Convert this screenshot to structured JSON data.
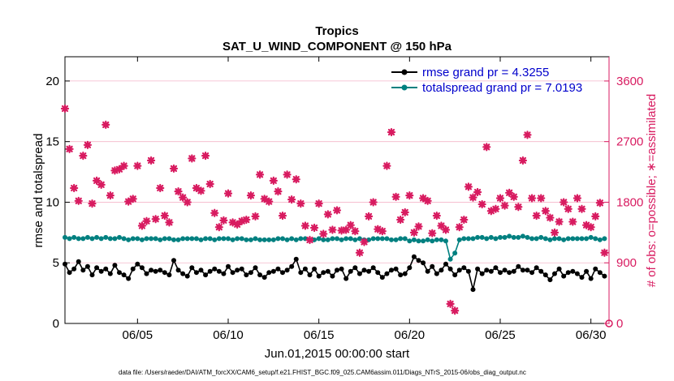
{
  "chart_data": {
    "type": "line",
    "title": "Tropics",
    "subtitle": "SAT_U_WIND_COMPONENT @ 150 hPa",
    "xlabel": "Jun.01,2015 00:00:00 start",
    "ylabel": "rmse and totalspread",
    "ylabel_right": "# of obs: o=possible; ∗=assimilated",
    "xlim": [
      1,
      31
    ],
    "ylim": [
      0,
      22
    ],
    "ylim_right": [
      0,
      3960
    ],
    "x_ticks": [
      5,
      10,
      15,
      20,
      25,
      30
    ],
    "x_tick_labels": [
      "06/05",
      "06/10",
      "06/15",
      "06/20",
      "06/25",
      "06/30"
    ],
    "y_ticks": [
      0,
      5,
      10,
      15,
      20
    ],
    "y_tick_labels": [
      "0",
      "5",
      "10",
      "15",
      "20"
    ],
    "y_ticks_right": [
      0,
      900,
      1800,
      2700,
      3600
    ],
    "y_tick_labels_right": [
      "0",
      "900",
      "1800",
      "2700",
      "3600"
    ],
    "legend_position": "top-right",
    "series": [
      {
        "name": "rmse grand pr = 4.3255",
        "color": "#000000",
        "marker": "circle",
        "axis": "left",
        "x": [
          1.0,
          1.25,
          1.5,
          1.75,
          2.0,
          2.25,
          2.5,
          2.75,
          3.0,
          3.25,
          3.5,
          3.75,
          4.0,
          4.25,
          4.5,
          4.75,
          5.0,
          5.25,
          5.5,
          5.75,
          6.0,
          6.25,
          6.5,
          6.75,
          7.0,
          7.25,
          7.5,
          7.75,
          8.0,
          8.25,
          8.5,
          8.75,
          9.0,
          9.25,
          9.5,
          9.75,
          10.0,
          10.25,
          10.5,
          10.75,
          11.0,
          11.25,
          11.5,
          11.75,
          12.0,
          12.25,
          12.5,
          12.75,
          13.0,
          13.25,
          13.5,
          13.75,
          14.0,
          14.25,
          14.5,
          14.75,
          15.0,
          15.25,
          15.5,
          15.75,
          16.0,
          16.25,
          16.5,
          16.75,
          17.0,
          17.25,
          17.5,
          17.75,
          18.0,
          18.25,
          18.5,
          18.75,
          19.0,
          19.25,
          19.5,
          19.75,
          20.0,
          20.25,
          20.5,
          20.75,
          21.0,
          21.25,
          21.5,
          21.75,
          22.0,
          22.25,
          22.5,
          22.75,
          23.0,
          23.25,
          23.5,
          23.75,
          24.0,
          24.25,
          24.5,
          24.75,
          25.0,
          25.25,
          25.5,
          25.75,
          26.0,
          26.25,
          26.5,
          26.75,
          27.0,
          27.25,
          27.5,
          27.75,
          28.0,
          28.25,
          28.5,
          28.75,
          29.0,
          29.25,
          29.5,
          29.75,
          30.0,
          30.25,
          30.5,
          30.75
        ],
        "y": [
          4.9,
          4.2,
          4.5,
          5.1,
          4.4,
          4.7,
          4.0,
          4.6,
          4.3,
          4.5,
          4.1,
          4.8,
          4.2,
          4.0,
          3.7,
          4.5,
          4.9,
          4.6,
          4.1,
          4.4,
          4.3,
          4.4,
          4.2,
          4.0,
          5.2,
          4.4,
          4.1,
          3.9,
          4.6,
          4.2,
          4.4,
          4.0,
          4.3,
          4.5,
          4.3,
          4.1,
          4.7,
          4.2,
          4.4,
          4.5,
          4.0,
          4.2,
          4.6,
          4.0,
          3.8,
          4.2,
          4.3,
          4.5,
          4.2,
          4.4,
          4.7,
          5.3,
          4.2,
          4.5,
          4.0,
          4.5,
          3.9,
          4.2,
          4.3,
          3.9,
          4.4,
          4.5,
          3.7,
          4.3,
          4.6,
          4.1,
          4.4,
          4.3,
          4.6,
          4.2,
          3.8,
          4.1,
          4.4,
          4.5,
          4.0,
          4.1,
          4.6,
          5.5,
          5.2,
          5.0,
          4.3,
          4.7,
          4.1,
          4.4,
          4.9,
          4.5,
          4.0,
          4.4,
          4.6,
          4.3,
          2.8,
          4.5,
          4.1,
          4.4,
          4.3,
          4.6,
          4.2,
          4.4,
          4.2,
          4.3,
          4.7,
          4.4,
          4.4,
          4.2,
          4.6,
          4.3,
          4.0,
          3.6,
          4.1,
          4.5,
          3.9,
          4.2,
          4.3,
          4.1,
          3.8,
          4.3,
          3.7,
          4.5,
          4.2,
          3.9
        ],
        "y_extra": {
          "x": [
            30.5,
            30.75
          ],
          "y": [
            4.1,
            4.4
          ]
        }
      },
      {
        "name": "totalspread grand pr = 7.0193",
        "color": "#008080",
        "marker": "circle",
        "axis": "left",
        "x": [
          1.0,
          1.25,
          1.5,
          1.75,
          2.0,
          2.25,
          2.5,
          2.75,
          3.0,
          3.25,
          3.5,
          3.75,
          4.0,
          4.25,
          4.5,
          4.75,
          5.0,
          5.25,
          5.5,
          5.75,
          6.0,
          6.25,
          6.5,
          6.75,
          7.0,
          7.25,
          7.5,
          7.75,
          8.0,
          8.25,
          8.5,
          8.75,
          9.0,
          9.25,
          9.5,
          9.75,
          10.0,
          10.25,
          10.5,
          10.75,
          11.0,
          11.25,
          11.5,
          11.75,
          12.0,
          12.25,
          12.5,
          12.75,
          13.0,
          13.25,
          13.5,
          13.75,
          14.0,
          14.25,
          14.5,
          14.75,
          15.0,
          15.25,
          15.5,
          15.75,
          16.0,
          16.25,
          16.5,
          16.75,
          17.0,
          17.25,
          17.5,
          17.75,
          18.0,
          18.25,
          18.5,
          18.75,
          19.0,
          19.25,
          19.5,
          19.75,
          20.0,
          20.25,
          20.5,
          20.75,
          21.0,
          21.25,
          21.5,
          21.75,
          22.0,
          22.25,
          22.5,
          22.75,
          23.0,
          23.25,
          23.5,
          23.75,
          24.0,
          24.25,
          24.5,
          24.75,
          25.0,
          25.25,
          25.5,
          25.75,
          26.0,
          26.25,
          26.5,
          26.75,
          27.0,
          27.25,
          27.5,
          27.75,
          28.0,
          28.25,
          28.5,
          28.75,
          29.0,
          29.25,
          29.5,
          29.75,
          30.0,
          30.25,
          30.5,
          30.75
        ],
        "y": [
          7.1,
          7.0,
          7.1,
          7.0,
          7.0,
          7.1,
          7.0,
          7.1,
          7.0,
          7.1,
          7.0,
          7.0,
          7.1,
          7.0,
          6.9,
          7.0,
          7.0,
          6.9,
          7.0,
          7.0,
          7.0,
          6.9,
          7.0,
          7.0,
          6.9,
          6.9,
          7.0,
          7.0,
          7.0,
          7.0,
          6.9,
          7.0,
          7.0,
          6.9,
          7.0,
          7.0,
          7.0,
          6.9,
          7.0,
          7.0,
          6.9,
          6.9,
          7.0,
          6.9,
          6.9,
          6.9,
          6.9,
          7.0,
          7.0,
          6.9,
          7.0,
          6.9,
          7.0,
          7.0,
          6.9,
          6.9,
          7.0,
          6.9,
          6.9,
          7.0,
          7.0,
          6.9,
          7.0,
          7.0,
          6.9,
          7.0,
          6.9,
          6.9,
          7.0,
          7.0,
          7.0,
          7.0,
          6.9,
          6.9,
          7.0,
          7.0,
          6.8,
          6.9,
          6.8,
          6.8,
          6.9,
          6.8,
          6.9,
          6.9,
          6.8,
          5.3,
          5.8,
          6.9,
          7.0,
          7.0,
          7.0,
          7.1,
          7.1,
          7.0,
          7.1,
          7.0,
          7.1,
          7.1,
          7.2,
          7.1,
          7.1,
          7.2,
          7.1,
          7.0,
          7.0,
          7.1,
          7.0,
          6.9,
          7.0,
          7.0,
          6.9,
          7.0,
          7.0,
          7.0,
          7.0,
          7.0,
          7.1,
          7.0,
          6.9,
          7.0
        ]
      },
      {
        "name": "# of obs assimilated",
        "color": "#d81b60",
        "marker": "star",
        "axis": "right",
        "x": [
          1.0,
          1.25,
          1.5,
          1.75,
          2.0,
          2.25,
          2.5,
          2.75,
          3.0,
          3.25,
          3.5,
          3.75,
          4.0,
          4.25,
          4.5,
          4.75,
          5.0,
          5.25,
          5.5,
          5.75,
          6.0,
          6.25,
          6.5,
          6.75,
          7.0,
          7.25,
          7.5,
          7.75,
          8.0,
          8.25,
          8.5,
          8.75,
          9.0,
          9.25,
          9.5,
          9.75,
          10.0,
          10.25,
          10.5,
          10.75,
          11.0,
          11.25,
          11.5,
          11.75,
          12.0,
          12.25,
          12.5,
          12.75,
          13.0,
          13.25,
          13.5,
          13.75,
          14.0,
          14.25,
          14.5,
          14.75,
          15.0,
          15.25,
          15.5,
          15.75,
          16.0,
          16.25,
          16.5,
          16.75,
          17.0,
          17.25,
          17.5,
          17.75,
          18.0,
          18.25,
          18.5,
          18.75,
          19.0,
          19.25,
          19.5,
          19.75,
          20.0,
          20.25,
          20.5,
          20.75,
          21.0,
          21.25,
          21.5,
          21.75,
          22.0,
          22.25,
          22.5,
          22.75,
          23.0,
          23.25,
          23.5,
          23.75,
          24.0,
          24.25,
          24.5,
          24.75,
          25.0,
          25.25,
          25.5,
          25.75,
          26.0,
          26.25,
          26.5,
          26.75,
          27.0,
          27.25,
          27.5,
          27.75,
          28.0,
          28.25,
          28.5,
          28.75,
          29.0,
          29.25,
          29.5,
          29.75,
          30.0,
          30.25,
          30.5,
          30.75
        ],
        "y": [
          3190,
          2590,
          2010,
          1820,
          2490,
          2650,
          1780,
          2120,
          2060,
          2950,
          1900,
          2270,
          2290,
          2340,
          1810,
          1850,
          2340,
          1450,
          1520,
          2420,
          1550,
          2010,
          1600,
          1500,
          2300,
          1960,
          1870,
          1800,
          2450,
          2010,
          1970,
          2490,
          2070,
          1640,
          1430,
          1530,
          1930,
          1500,
          1470,
          1520,
          1540,
          1900,
          1590,
          2210,
          1850,
          1810,
          2120,
          1960,
          1600,
          2210,
          1840,
          2140,
          1780,
          1450,
          1240,
          1420,
          1780,
          1330,
          1620,
          1390,
          1680,
          1380,
          1390,
          1460,
          1370,
          1050,
          1210,
          1590,
          1800,
          1400,
          1370,
          2340,
          2840,
          1880,
          1540,
          1650,
          1900,
          1350,
          1440,
          1860,
          1820,
          1340,
          1600,
          1450,
          1390,
          290,
          190,
          1430,
          1540,
          2030,
          1870,
          1950,
          1770,
          2620,
          1670,
          1700,
          1860,
          1750,
          1940,
          1880,
          1730,
          2420,
          2800,
          1860,
          1600,
          1860,
          1670,
          1570,
          1350,
          1510,
          1800,
          1700,
          1510,
          1860,
          1700,
          1460,
          1430,
          1590,
          1790,
          1050
        ]
      }
    ],
    "footer": "data file: /Users/raeder/DAI/ATM_forcXX/CAM6_setup/f.e21.FHIST_BGC.f09_025.CAM6assim.011/Diags_NTrS_2015-06/obs_diag_output.nc"
  }
}
